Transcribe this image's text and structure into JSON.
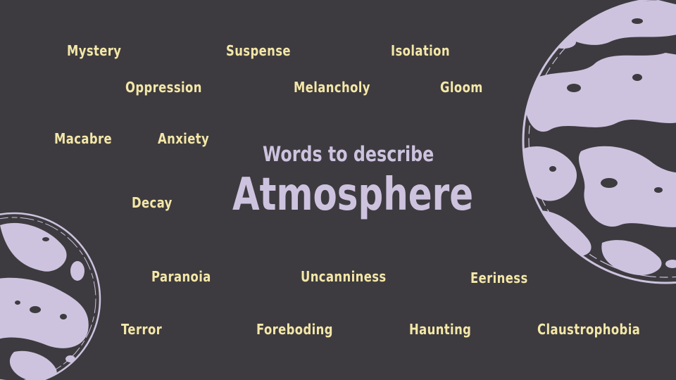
{
  "heading": {
    "subtitle": "Words to describe",
    "title": "Atmosphere"
  },
  "words": [
    "Mystery",
    "Suspense",
    "Isolation",
    "Oppression",
    "Melancholy",
    "Gloom",
    "Macabre",
    "Anxiety",
    "Decay",
    "Paranoia",
    "Uncanniness",
    "Eeriness",
    "Terror",
    "Foreboding",
    "Haunting",
    "Claustrophobia"
  ],
  "colors": {
    "background": "#3d3b3f",
    "word": "#f4e7a8",
    "heading": "#cdc3df",
    "moon": "#cdc3df"
  }
}
